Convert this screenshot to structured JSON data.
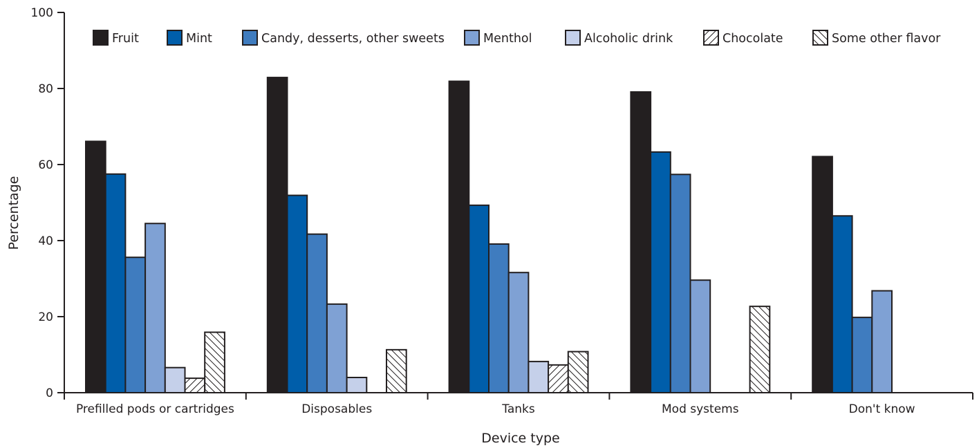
{
  "chart_data": {
    "type": "bar",
    "title": "",
    "xlabel": "Device type",
    "ylabel": "Percentage",
    "ylim": [
      0,
      100
    ],
    "yticks": [
      0,
      20,
      40,
      60,
      80,
      100
    ],
    "grid": false,
    "legend_position": "top",
    "categories": [
      "Prefilled pods or cartridges",
      "Disposables",
      "Tanks",
      "Mod systems",
      "Don't know"
    ],
    "series": [
      {
        "name": "Fruit",
        "color": "#231f20",
        "pattern": "solid",
        "values": [
          66.1,
          82.9,
          81.9,
          79.1,
          62.1
        ]
      },
      {
        "name": "Mint",
        "color": "#005eaa",
        "pattern": "solid",
        "values": [
          57.5,
          51.9,
          49.3,
          63.3,
          46.5
        ]
      },
      {
        "name": "Candy, desserts, other sweets",
        "color": "#3f7cbf",
        "pattern": "solid",
        "values": [
          35.6,
          41.7,
          39.1,
          57.4,
          19.8
        ]
      },
      {
        "name": "Menthol",
        "color": "#7fa1d4",
        "pattern": "solid",
        "values": [
          44.5,
          23.3,
          31.6,
          29.6,
          26.8
        ]
      },
      {
        "name": "Alcoholic drink",
        "color": "#c5d0ea",
        "pattern": "solid",
        "values": [
          6.6,
          4.0,
          8.2,
          null,
          null
        ]
      },
      {
        "name": "Chocolate",
        "color": "#231f20",
        "pattern": "hatch-right",
        "values": [
          3.8,
          null,
          7.3,
          null,
          null
        ]
      },
      {
        "name": "Some other flavor",
        "color": "#231f20",
        "pattern": "hatch-left",
        "values": [
          15.9,
          11.3,
          10.8,
          22.7,
          null
        ]
      }
    ]
  }
}
